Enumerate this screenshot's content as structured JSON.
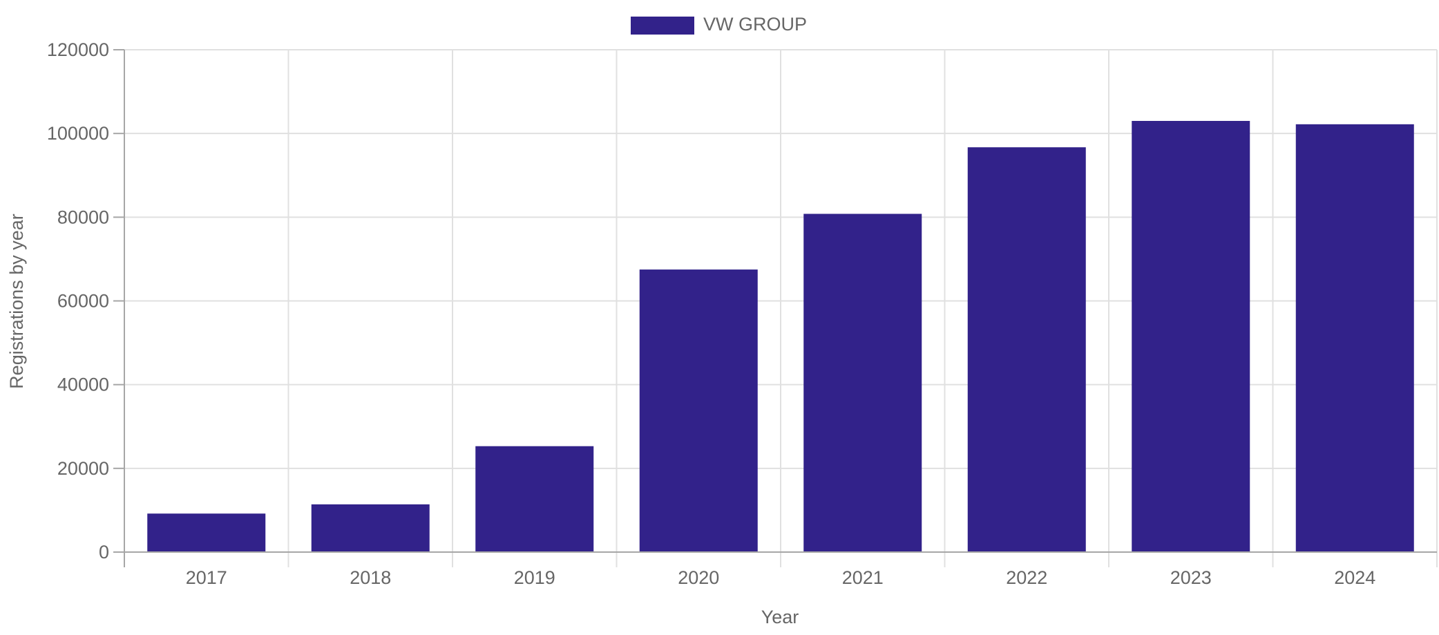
{
  "chart_data": {
    "type": "bar",
    "categories": [
      "2017",
      "2018",
      "2019",
      "2020",
      "2021",
      "2022",
      "2023",
      "2024"
    ],
    "series": [
      {
        "name": "VW GROUP",
        "color": "#32228a",
        "values": [
          9200,
          11400,
          25300,
          67500,
          80800,
          96700,
          103000,
          102200
        ]
      }
    ],
    "xlabel": "Year",
    "ylabel": "Registrations by year",
    "ylim": [
      0,
      120000
    ],
    "yticks": [
      0,
      20000,
      40000,
      60000,
      80000,
      100000,
      120000
    ],
    "grid": true,
    "legend_position": "top-center"
  }
}
